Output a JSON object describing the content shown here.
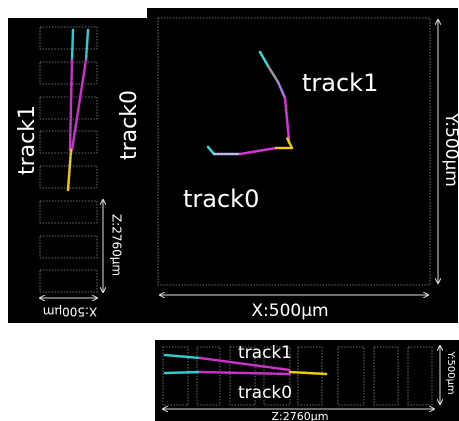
{
  "main_view": {
    "track_labels": [
      "track1",
      "track0"
    ],
    "x_axis": "X:500μm",
    "y_axis": "Y:500μm"
  },
  "side_view": {
    "track_labels": [
      "track1",
      "track0"
    ],
    "z_axis": "Z:2760μm",
    "x_axis": "X:500μm"
  },
  "bottom_view": {
    "track_labels": [
      "track1",
      "track0"
    ],
    "y_axis": "Y:500μm",
    "z_axis": "Z:2760μm"
  }
}
